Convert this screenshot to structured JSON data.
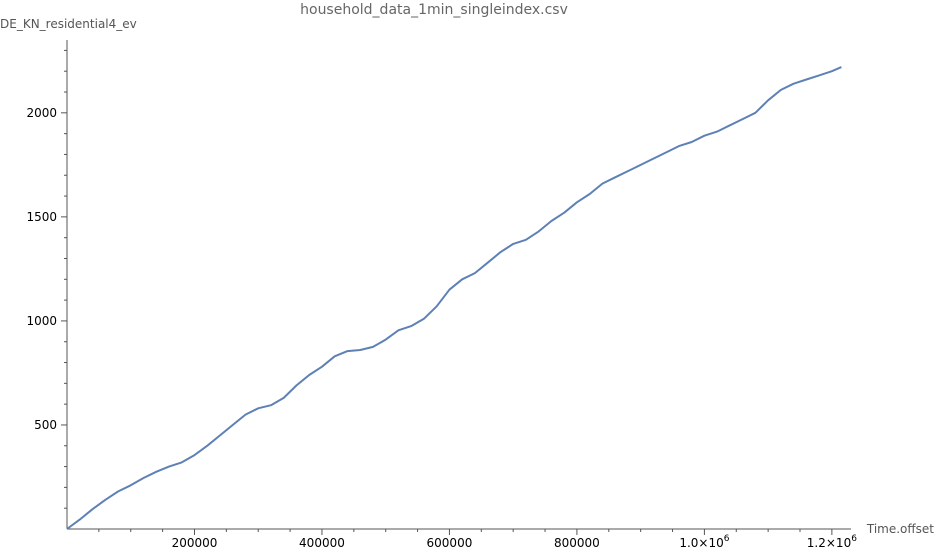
{
  "chart_data": {
    "type": "line",
    "title": "household_data_1min_singleindex.csv",
    "xlabel": "Time.offset",
    "ylabel": "DE_KN_residential4_ev",
    "xlim": [
      0,
      1230000
    ],
    "ylim": [
      0,
      2350
    ],
    "grid": false,
    "x_ticks": [
      {
        "value": 200000,
        "label": "200000"
      },
      {
        "value": 400000,
        "label": "400000"
      },
      {
        "value": 600000,
        "label": "600000"
      },
      {
        "value": 800000,
        "label": "800000"
      },
      {
        "value": 1000000,
        "label": "1.0×10",
        "exp": "6"
      },
      {
        "value": 1200000,
        "label": "1.2×10",
        "exp": "6"
      }
    ],
    "y_ticks": [
      {
        "value": 500,
        "label": "500"
      },
      {
        "value": 1000,
        "label": "1000"
      },
      {
        "value": 1500,
        "label": "1500"
      },
      {
        "value": 2000,
        "label": "2000"
      }
    ],
    "series": [
      {
        "color": "#5E81B5",
        "x": [
          0,
          20000,
          40000,
          60000,
          80000,
          100000,
          120000,
          140000,
          160000,
          180000,
          200000,
          220000,
          240000,
          260000,
          280000,
          300000,
          320000,
          340000,
          360000,
          380000,
          400000,
          420000,
          440000,
          460000,
          480000,
          500000,
          520000,
          540000,
          560000,
          580000,
          600000,
          620000,
          640000,
          660000,
          680000,
          700000,
          720000,
          740000,
          760000,
          780000,
          800000,
          820000,
          840000,
          860000,
          880000,
          900000,
          920000,
          940000,
          960000,
          980000,
          1000000,
          1020000,
          1040000,
          1060000,
          1080000,
          1100000,
          1120000,
          1140000,
          1160000,
          1180000,
          1200000,
          1215000
        ],
        "y": [
          0,
          45,
          95,
          140,
          180,
          210,
          245,
          275,
          300,
          320,
          355,
          400,
          450,
          500,
          550,
          580,
          595,
          630,
          690,
          740,
          780,
          830,
          855,
          860,
          875,
          910,
          955,
          975,
          1010,
          1070,
          1150,
          1200,
          1230,
          1280,
          1330,
          1370,
          1390,
          1430,
          1480,
          1520,
          1570,
          1610,
          1660,
          1690,
          1720,
          1750,
          1780,
          1810,
          1840,
          1860,
          1890,
          1910,
          1940,
          1970,
          2000,
          2060,
          2110,
          2140,
          2160,
          2180,
          2200,
          2220
        ]
      }
    ]
  }
}
